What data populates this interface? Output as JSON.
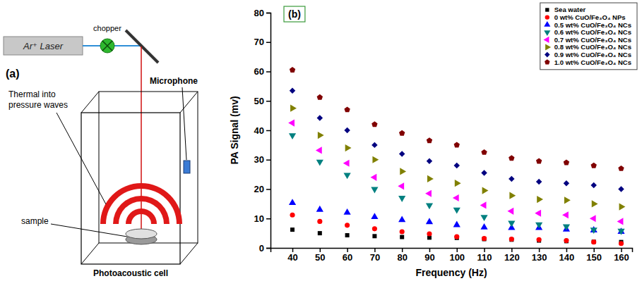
{
  "diagram": {
    "panel_label": "(a)",
    "laser": "Ar⁺ Laser",
    "chopper": "chopper",
    "waves": [
      "Thermal into",
      "pressure waves"
    ],
    "microphone": "Microphone",
    "sample": "sample",
    "cell": "Photoacoustic cell"
  },
  "chart_data": {
    "type": "scatter",
    "panel_label": "(b)",
    "x_label": "Frequency (Hz)",
    "y_label": "PA Signal (mv)",
    "x": [
      40,
      50,
      60,
      70,
      80,
      90,
      100,
      110,
      120,
      130,
      140,
      150,
      160
    ],
    "xlim": [
      32,
      164
    ],
    "xticks": [
      40,
      50,
      60,
      70,
      80,
      90,
      100,
      110,
      120,
      130,
      140,
      150,
      160
    ],
    "ylim": [
      0,
      80
    ],
    "yticks": [
      0,
      10,
      20,
      30,
      40,
      50,
      60,
      70,
      80
    ],
    "legend": "top-right",
    "series": [
      {
        "name": "Sea water",
        "color": "#000000",
        "marker": "square",
        "values": [
          6.2,
          5,
          4.3,
          4,
          3.7,
          3.5,
          3.4,
          3,
          2.8,
          2.5,
          2.3,
          2.1,
          2
        ]
      },
      {
        "name": "0 wt% CuO/Fe₃O₄ NPs",
        "color": "#ff0000",
        "marker": "circle",
        "values": [
          11.2,
          9,
          7.7,
          6.5,
          5.5,
          4.8,
          3.8,
          3.2,
          3,
          2.8,
          2.5,
          2,
          1.5
        ]
      },
      {
        "name": "0.5 wt% CuO/Fe₃O₄ NCs",
        "color": "#0000ff",
        "marker": "triangle-up",
        "values": [
          15.3,
          13,
          12,
          10.5,
          9.5,
          8.8,
          7.8,
          7,
          6.8,
          6.8,
          6.3,
          6,
          5.5
        ]
      },
      {
        "name": "0.6 wt% CuO/Fe₃O₄ NCs",
        "color": "#008080",
        "marker": "triangle-down",
        "values": [
          38.3,
          29.3,
          24.8,
          20,
          17,
          14.5,
          13,
          10.5,
          8.5,
          8,
          7.3,
          6.2,
          5.8
        ]
      },
      {
        "name": "0.7 wt% CuO/Fe₃O₄ NCs",
        "color": "#ff00ff",
        "marker": "triangle-left",
        "values": [
          42.5,
          33.2,
          28.8,
          24,
          21,
          18.5,
          17,
          14.5,
          12.5,
          11.8,
          11.2,
          10,
          9
        ]
      },
      {
        "name": "0.8 wt% CuO/Fe₃O₄ NCs",
        "color": "#808000",
        "marker": "triangle-right",
        "values": [
          47.5,
          38.3,
          34,
          30,
          26,
          23.5,
          22,
          19.5,
          17.8,
          16.5,
          16.2,
          15,
          14
        ]
      },
      {
        "name": "0.9 wt% CuO/Fe₃O₄ NCs",
        "color": "#000080",
        "marker": "diamond",
        "values": [
          53.5,
          44.2,
          40,
          35,
          32,
          29.5,
          28,
          25.5,
          23.5,
          22.5,
          22,
          21.3,
          20
        ]
      },
      {
        "name": "1.0 wt% CuO/Fe₃O₄ NCs",
        "color": "#800000",
        "marker": "pentagon",
        "values": [
          60.5,
          51.2,
          47,
          42,
          39,
          36.5,
          35,
          32.5,
          30.5,
          29.5,
          29,
          28,
          27
        ]
      }
    ]
  }
}
